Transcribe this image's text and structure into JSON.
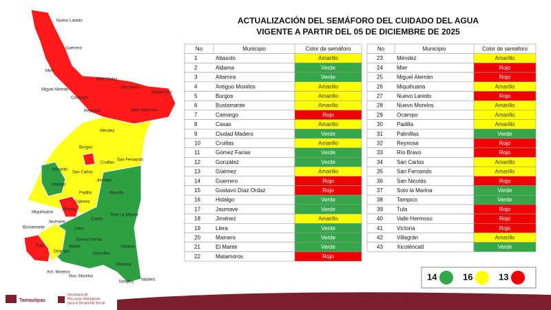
{
  "title": [
    "ACTUALIZACIÓN DEL SEMÁFORO DEL CUIDADO DEL AGUA",
    "VIGENTE A PARTIR DEL 05 DE DICIEMBRE DE 2025"
  ],
  "colors": {
    "Verde": "#35a64a",
    "Amarillo": "#ffff00",
    "Rojo": "#f00000"
  },
  "table": {
    "headers": [
      "No",
      "Municipio",
      "Color de semáforo"
    ],
    "rows": [
      [
        1,
        "Abasolo",
        "Amarillo"
      ],
      [
        2,
        "Aldama",
        "Verde"
      ],
      [
        3,
        "Altamira",
        "Verde"
      ],
      [
        4,
        "Antiguo Morelos",
        "Amarillo"
      ],
      [
        5,
        "Burgos",
        "Amarillo"
      ],
      [
        6,
        "Bustamante",
        "Amarillo"
      ],
      [
        7,
        "Camargo",
        "Rojo"
      ],
      [
        8,
        "Casas",
        "Amarillo"
      ],
      [
        9,
        "Ciudad Madero",
        "Verde"
      ],
      [
        10,
        "Cruillas",
        "Amarillo"
      ],
      [
        11,
        "Gómez Farías",
        "Verde"
      ],
      [
        12,
        "González",
        "Verde"
      ],
      [
        13,
        "Güémez",
        "Amarillo"
      ],
      [
        14,
        "Guerrero",
        "Rojo"
      ],
      [
        15,
        "Gustavo Díaz Ordaz",
        "Rojo"
      ],
      [
        16,
        "Hidalgo",
        "Verde"
      ],
      [
        17,
        "Jaumave",
        "Verde"
      ],
      [
        18,
        "Jiménez",
        "Amarillo"
      ],
      [
        19,
        "Llera",
        "Verde"
      ],
      [
        20,
        "Mainero",
        "Verde"
      ],
      [
        21,
        "El Mante",
        "Verde"
      ],
      [
        22,
        "Matamoros",
        "Rojo"
      ],
      [
        23,
        "Méndez",
        "Amarillo"
      ],
      [
        24,
        "Mier",
        "Rojo"
      ],
      [
        25,
        "Miguel Alemán",
        "Rojo"
      ],
      [
        26,
        "Miquihuana",
        "Amarillo"
      ],
      [
        27,
        "Nuevo Laredo",
        "Rojo"
      ],
      [
        28,
        "Nuevo Morelos",
        "Amarillo"
      ],
      [
        29,
        "Ocampo",
        "Amarillo"
      ],
      [
        30,
        "Padilla",
        "Amarillo"
      ],
      [
        31,
        "Palmillas",
        "Verde"
      ],
      [
        32,
        "Reynosa",
        "Rojo"
      ],
      [
        33,
        "Río Bravo",
        "Rojo"
      ],
      [
        34,
        "San Carlos",
        "Amarillo"
      ],
      [
        35,
        "San Fernando",
        "Amarillo"
      ],
      [
        36,
        "San Nicolás",
        "Rojo"
      ],
      [
        37,
        "Soto la Marina",
        "Verde"
      ],
      [
        38,
        "Tampico",
        "Verde"
      ],
      [
        39,
        "Tula",
        "Rojo"
      ],
      [
        40,
        "Valle Hermoso",
        "Rojo"
      ],
      [
        41,
        "Victoria",
        "Rojo"
      ],
      [
        42,
        "Villagrán",
        "Amarillo"
      ],
      [
        43,
        "Xicoténcatl",
        "Verde"
      ]
    ]
  },
  "summary": [
    {
      "count": 14,
      "status": "Verde"
    },
    {
      "count": 16,
      "status": "Amarillo"
    },
    {
      "count": 13,
      "status": "Rojo"
    }
  ],
  "map_labels": [
    "Nuevo Laredo",
    "Guerrero",
    "Mier",
    "Díaz Ordaz",
    "Miguel Alemán",
    "Río Bravo",
    "Matamoros",
    "Camargo",
    "Reynosa",
    "Valle Hermoso",
    "Méndez",
    "Burgos",
    "Cruillas",
    "San Fernando",
    "Villagrán",
    "San Carlos",
    "Hidalgo",
    "Jiménez",
    "Padilla",
    "Abasolo",
    "Güémez",
    "Miquihuana",
    "Victoria",
    "Soto La Marina",
    "Bustamante",
    "Jaumave",
    "Casas",
    "Llera",
    "Tula",
    "Ocampo",
    "Gómez Farías",
    "Mante",
    "González",
    "Aldama",
    "Altamira",
    "Ant. Morelos",
    "Nvo. Morelos",
    "Tampico",
    "Madero"
  ],
  "footer": {
    "state": "Tamaulipas",
    "agency": [
      "Secretaría de",
      "Recursos Hidráulicos",
      "para el Desarrollo Social"
    ]
  }
}
